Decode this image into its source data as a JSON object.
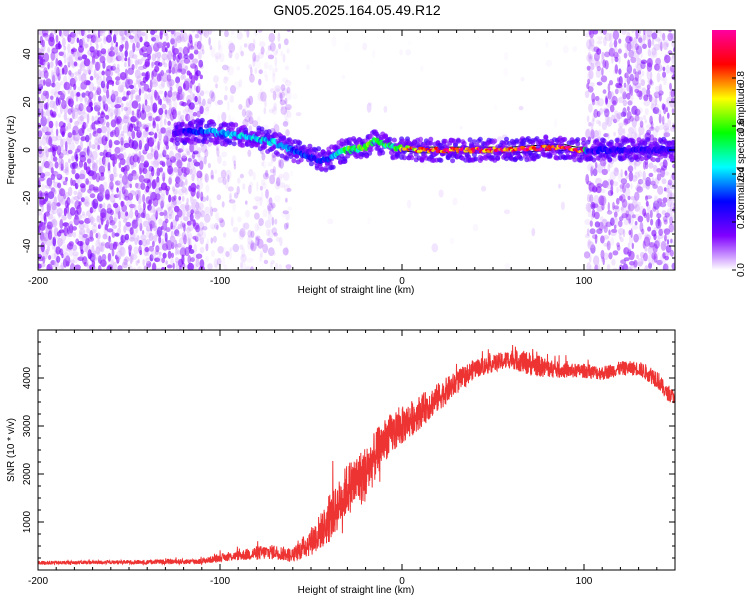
{
  "title": "GN05.2025.164.05.49.R12",
  "chart_data": [
    {
      "type": "heatmap",
      "xlabel": "Height of straight line (km)",
      "ylabel": "Frequency (Hz)",
      "xlim": [
        -200,
        150
      ],
      "ylim": [
        -50,
        50
      ],
      "xticks": [
        -200,
        -100,
        0,
        100
      ],
      "yticks": [
        -40,
        -20,
        0,
        20,
        40
      ],
      "colorbar": {
        "label": "Normalized spectral amplitude",
        "range": [
          0,
          1
        ],
        "ticks": [
          "0.0",
          "0.2",
          "0.4",
          "0.6",
          "0.8"
        ],
        "colormap": [
          "#ffffff",
          "#8000ff",
          "#0000ff",
          "#00ffff",
          "#00ff00",
          "#ffff00",
          "#ff0000",
          "#ff00a0"
        ]
      },
      "ridge": {
        "x": [
          -125,
          -110,
          -100,
          -90,
          -80,
          -70,
          -60,
          -50,
          -45,
          -40,
          -35,
          -30,
          -20,
          -15,
          -10,
          -5,
          0,
          10,
          20,
          40,
          60,
          80,
          90,
          95,
          100,
          102,
          110,
          120,
          130,
          140,
          150
        ],
        "y": [
          7,
          8,
          7,
          6,
          5,
          3,
          0,
          -3,
          -4,
          -4,
          -1,
          0,
          1,
          4,
          2,
          1,
          1,
          0,
          0,
          0,
          0,
          1,
          1,
          0,
          0,
          0,
          0,
          0,
          0,
          0,
          0
        ],
        "strength": [
          0.2,
          0.35,
          0.4,
          0.42,
          0.45,
          0.45,
          0.35,
          0.3,
          0.3,
          0.3,
          0.5,
          0.6,
          0.6,
          0.6,
          0.6,
          0.6,
          0.7,
          0.85,
          0.9,
          0.92,
          0.92,
          0.95,
          0.95,
          0.9,
          0.9,
          0.25,
          0.25,
          0.25,
          0.25,
          0.25,
          0.25
        ]
      }
    },
    {
      "type": "line",
      "xlabel": "Height of straight line (km)",
      "ylabel": "SNR (10 * v/v)",
      "xlim": [
        -200,
        150
      ],
      "ylim": [
        0,
        5000
      ],
      "xticks": [
        -200,
        -100,
        0,
        100
      ],
      "yticks": [
        1000,
        2000,
        3000,
        4000
      ],
      "color": "#ee3333",
      "x": [
        -200,
        -160,
        -130,
        -110,
        -100,
        -90,
        -80,
        -70,
        -60,
        -50,
        -40,
        -30,
        -20,
        -10,
        0,
        10,
        20,
        30,
        40,
        50,
        60,
        70,
        80,
        90,
        100,
        110,
        120,
        130,
        140,
        145,
        150
      ],
      "mean": [
        150,
        160,
        170,
        180,
        250,
        300,
        350,
        380,
        300,
        600,
        1000,
        1700,
        2000,
        2700,
        3000,
        3300,
        3600,
        3900,
        4200,
        4300,
        4400,
        4300,
        4200,
        4150,
        4150,
        4100,
        4200,
        4200,
        4000,
        3700,
        3600
      ],
      "noise": [
        40,
        40,
        50,
        60,
        80,
        100,
        150,
        150,
        150,
        300,
        450,
        550,
        600,
        450,
        400,
        350,
        300,
        250,
        200,
        180,
        200,
        250,
        200,
        150,
        150,
        150,
        150,
        150,
        200,
        150,
        150
      ]
    }
  ]
}
